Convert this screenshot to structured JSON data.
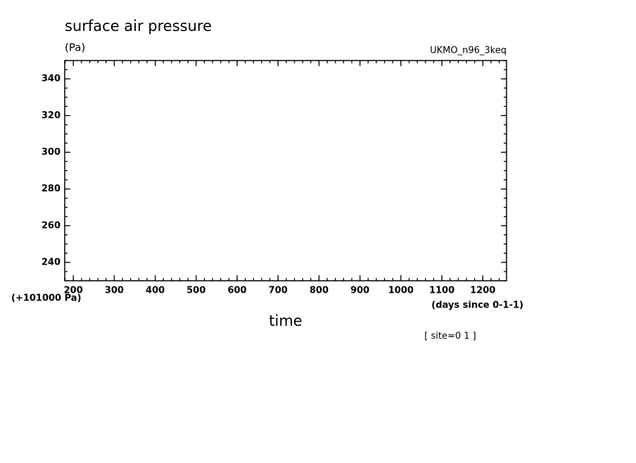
{
  "chart_data": {
    "type": "line",
    "title": "surface air pressure",
    "y_unit": "(Pa)",
    "source": "UKMO_n96_3keq",
    "y_offset_label": "(+101000 Pa)",
    "x_unit": "(days since 0-1-1)",
    "xlabel": "time",
    "annotation": "[ site=0 1 ]",
    "series": [],
    "xlim": [
      179,
      1258
    ],
    "xticks": [
      200,
      300,
      400,
      500,
      600,
      700,
      800,
      900,
      1000,
      1100,
      1200
    ],
    "ylim": [
      230,
      350
    ],
    "yticks": [
      240,
      260,
      280,
      300,
      320,
      340
    ],
    "minor_ticks": true,
    "color": "#000000"
  }
}
